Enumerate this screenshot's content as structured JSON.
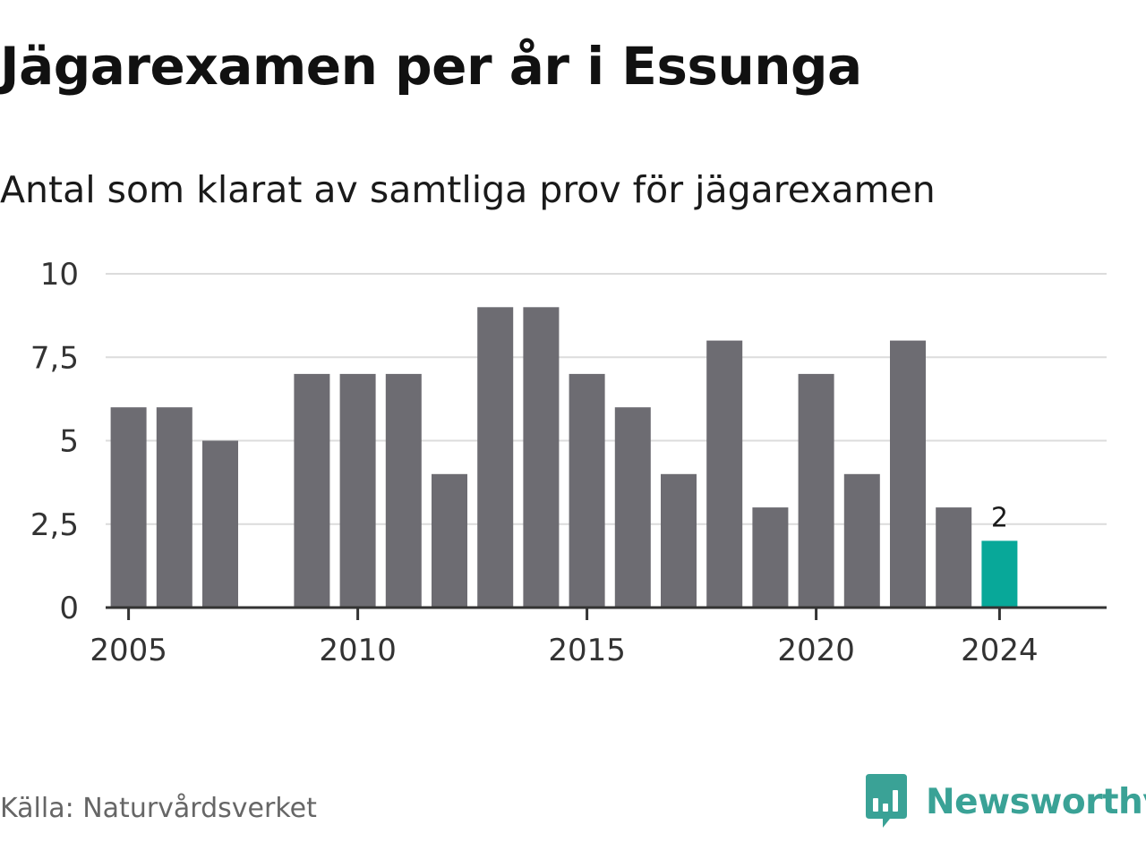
{
  "title": "Jägarexamen per år i Essunga",
  "subtitle": "Antal som klarat av samtliga prov för jägarexamen",
  "source": "Källa: Naturvårdsverket",
  "brand": {
    "name": "Newsworthy",
    "icon": "newsworthy-logo-icon",
    "color": "#3aa296"
  },
  "colors": {
    "bar": "#6d6c72",
    "highlight": "#08a899",
    "grid": "#dcdcdc",
    "axis": "#333333"
  },
  "chart_data": {
    "type": "bar",
    "x": [
      2005,
      2006,
      2007,
      2009,
      2010,
      2011,
      2012,
      2013,
      2014,
      2015,
      2016,
      2017,
      2018,
      2019,
      2020,
      2021,
      2022,
      2023,
      2024
    ],
    "values": [
      6,
      6,
      5,
      7,
      7,
      7,
      4,
      9,
      9,
      7,
      6,
      4,
      8,
      3,
      7,
      4,
      8,
      3,
      2
    ],
    "highlight": {
      "x": 2024,
      "label": "2"
    },
    "ylim": [
      0,
      10
    ],
    "yticks": [
      0,
      2.5,
      5,
      7.5,
      10
    ],
    "ytick_labels": [
      "0",
      "2,5",
      "5",
      "7,5",
      "10"
    ],
    "xticks": [
      2005,
      2010,
      2015,
      2020,
      2024
    ],
    "xtick_labels": [
      "2005",
      "2010",
      "2015",
      "2020",
      "2024"
    ],
    "grid": true,
    "xlabel": "",
    "ylabel": ""
  }
}
